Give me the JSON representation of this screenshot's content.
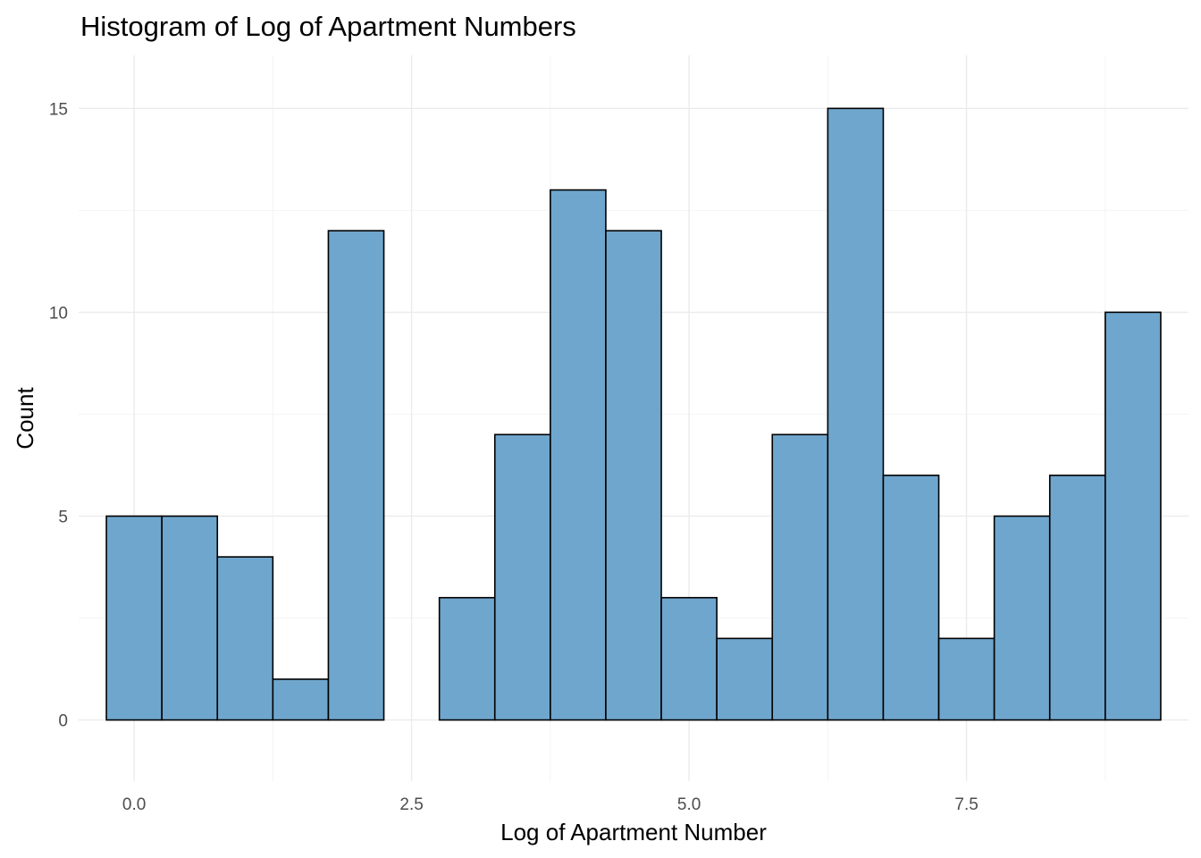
{
  "chart_data": {
    "type": "bar",
    "subtype": "histogram",
    "title": "Histogram of Log of Apartment Numbers",
    "xlabel": "Log of Apartment Number",
    "ylabel": "Count",
    "binwidth": 0.5,
    "bin_centers": [
      0,
      0.5,
      1,
      1.5,
      2,
      2.5,
      3,
      3.5,
      4,
      4.5,
      5,
      5.5,
      6,
      6.5,
      7,
      7.5,
      8,
      8.5,
      9
    ],
    "values": [
      5,
      5,
      4,
      1,
      12,
      0,
      3,
      7,
      13,
      12,
      3,
      2,
      7,
      15,
      6,
      2,
      5,
      6,
      10
    ],
    "xlim": [
      -0.5,
      9.5
    ],
    "ylim": [
      -1.5,
      16.3
    ],
    "xticks": [
      0,
      2.5,
      5,
      7.5
    ],
    "xtick_labels": [
      "0.0",
      "2.5",
      "5.0",
      "7.5"
    ],
    "yticks": [
      0,
      5,
      10,
      15
    ],
    "ytick_labels": [
      "0",
      "5",
      "10",
      "15"
    ],
    "grid": true,
    "legend": "none",
    "colors": {
      "fill": "#6fa6cd",
      "outline": "#000000"
    }
  }
}
